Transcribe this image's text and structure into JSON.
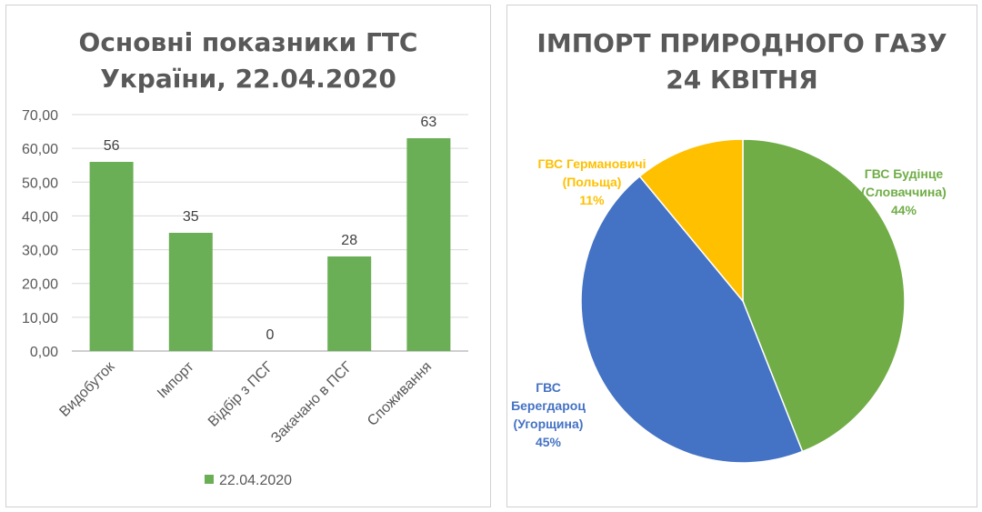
{
  "chart_data": [
    {
      "type": "bar",
      "title_line1": "Основні показники ГТС",
      "title_line2": "України, 22.04.2020",
      "categories": [
        "Видобуток",
        "Імпорт",
        "Відбір з ПСГ",
        "Закачано в ПСГ",
        "Споживання"
      ],
      "series": [
        {
          "name": "22.04.2020",
          "values": [
            56,
            35,
            0,
            28,
            63
          ],
          "color": "#6aaf55"
        }
      ],
      "data_labels": [
        "56",
        "35",
        "0",
        "28",
        "63"
      ],
      "ylim": [
        0,
        70
      ],
      "yticks": [
        "0,00",
        "10,00",
        "20,00",
        "30,00",
        "40,00",
        "50,00",
        "60,00",
        "70,00"
      ],
      "grid": true,
      "legend": "bottom"
    },
    {
      "type": "pie",
      "title_line1": "ІМПОРТ ПРИРОДНОГО ГАЗУ",
      "title_line2": "24 КВІТНЯ",
      "slices": [
        {
          "name_line1": "ГВС Будінце",
          "name_line2": "(Словаччина)",
          "value": 44,
          "label": "44%",
          "color": "#70ad47"
        },
        {
          "name_line1": "ГВС",
          "name_line2": "Берегдароц",
          "name_line3": "(Угорщина)",
          "value": 45,
          "label": "45%",
          "color": "#4472c4"
        },
        {
          "name_line1": "ГВС Германовичі",
          "name_line2": "(Польща)",
          "value": 11,
          "label": "11%",
          "color": "#ffc000"
        }
      ]
    }
  ]
}
